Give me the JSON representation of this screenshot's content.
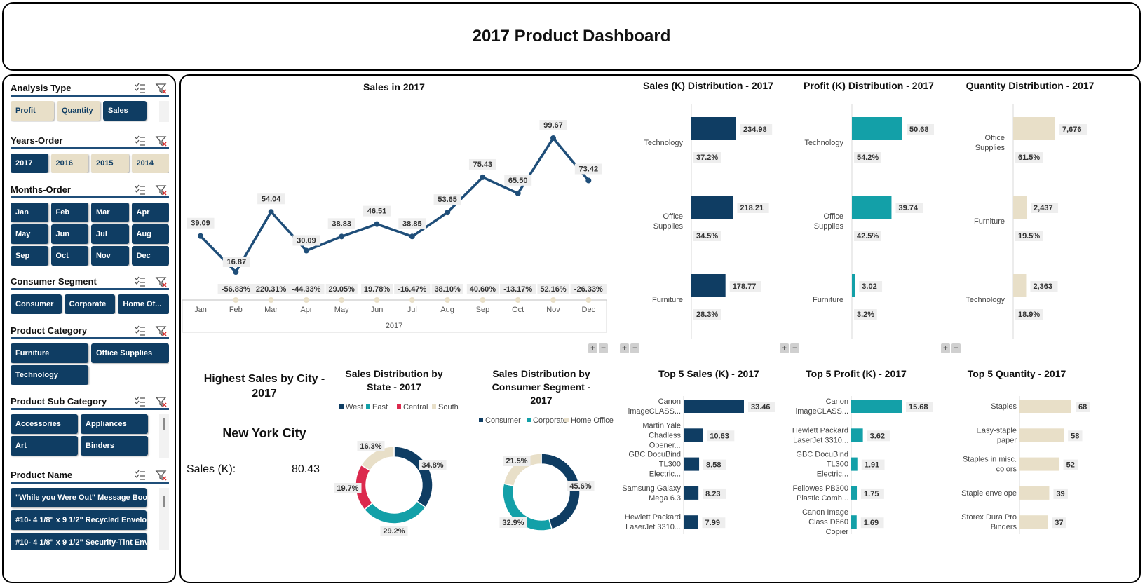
{
  "dashboard": {
    "title": "2017 Product Dashboard"
  },
  "colors": {
    "navy": "#0f3d63",
    "teal": "#13a0a8",
    "beige": "#e8dfc8",
    "crimson": "#dc2a4e",
    "line": "#1f4e79"
  },
  "slicers": {
    "analysis_type": {
      "title": "Analysis Type",
      "items": [
        {
          "label": "Profit",
          "selected": false
        },
        {
          "label": "Quantity",
          "selected": false
        },
        {
          "label": "Sales",
          "selected": true
        }
      ]
    },
    "years": {
      "title": "Years-Order",
      "items": [
        {
          "label": "2017",
          "selected": true
        },
        {
          "label": "2016",
          "selected": false
        },
        {
          "label": "2015",
          "selected": false
        },
        {
          "label": "2014",
          "selected": false
        }
      ]
    },
    "months": {
      "title": "Months-Order",
      "items": [
        {
          "label": "Jan"
        },
        {
          "label": "Feb"
        },
        {
          "label": "Mar"
        },
        {
          "label": "Apr"
        },
        {
          "label": "May"
        },
        {
          "label": "Jun"
        },
        {
          "label": "Jul"
        },
        {
          "label": "Aug"
        },
        {
          "label": "Sep"
        },
        {
          "label": "Oct"
        },
        {
          "label": "Nov"
        },
        {
          "label": "Dec"
        }
      ]
    },
    "segment": {
      "title": "Consumer Segment",
      "items": [
        {
          "label": "Consumer"
        },
        {
          "label": "Corporate"
        },
        {
          "label": "Home Of..."
        }
      ]
    },
    "category": {
      "title": "Product Category",
      "items": [
        {
          "label": "Furniture"
        },
        {
          "label": "Office Supplies"
        },
        {
          "label": "Technology"
        }
      ]
    },
    "sub_category": {
      "title": "Product Sub Category",
      "items": [
        {
          "label": "Accessories"
        },
        {
          "label": "Appliances"
        },
        {
          "label": "Art"
        },
        {
          "label": "Binders"
        }
      ]
    },
    "product_name": {
      "title": "Product Name",
      "items": [
        {
          "label": "\"While you Were Out\" Message Boo..."
        },
        {
          "label": "#10- 4 1/8\" x 9 1/2\" Recycled Envelo..."
        },
        {
          "label": "#10- 4 1/8\" x 9 1/2\" Security-Tint Env..."
        }
      ]
    }
  },
  "city": {
    "title": "Highest Sales  by City - 2017",
    "name": "New York City",
    "metric_label": "Sales (K):",
    "metric_value": "80.43"
  },
  "chart_data": [
    {
      "id": "sales_line",
      "type": "line",
      "title": "Sales in 2017",
      "x": [
        "Jan",
        "Feb",
        "Mar",
        "Apr",
        "May",
        "Jun",
        "Jul",
        "Aug",
        "Sep",
        "Oct",
        "Nov",
        "Dec"
      ],
      "values": [
        39.09,
        16.87,
        54.04,
        30.09,
        38.83,
        46.51,
        38.85,
        53.65,
        75.43,
        65.5,
        99.67,
        73.42
      ],
      "value_labels": [
        "39.09",
        "16.87",
        "54.04",
        "30.09",
        "38.83",
        "46.51",
        "38.85",
        "53.65",
        "75.43",
        "65.50",
        "99.67",
        "73.42"
      ],
      "change_labels": [
        "",
        "-56.83%",
        "220.31%",
        "-44.33%",
        "29.05%",
        "19.78%",
        "-16.47%",
        "38.10%",
        "40.60%",
        "-13.17%",
        "52.16%",
        "-26.33%"
      ],
      "xgroup": "2017"
    },
    {
      "id": "sales_dist",
      "type": "bar",
      "title": "Sales (K) Distribution - 2017",
      "color": "#0f3d63",
      "categories": [
        "Technology",
        "Office Supplies",
        "Furniture"
      ],
      "values": [
        234.98,
        218.21,
        178.77
      ],
      "value_labels": [
        "234.98",
        "218.21",
        "178.77"
      ],
      "pct_labels": [
        "37.2%",
        "34.5%",
        "28.3%"
      ]
    },
    {
      "id": "profit_dist",
      "type": "bar",
      "title": "Profit (K) Distribution - 2017",
      "color": "#13a0a8",
      "categories": [
        "Technology",
        "Office Supplies",
        "Furniture"
      ],
      "values": [
        50.68,
        39.74,
        3.02
      ],
      "value_labels": [
        "50.68",
        "39.74",
        "3.02"
      ],
      "pct_labels": [
        "54.2%",
        "42.5%",
        "3.2%"
      ]
    },
    {
      "id": "qty_dist",
      "type": "bar",
      "title": "Quantity Distribution - 2017",
      "color": "#e8dfc8",
      "categories": [
        "Office Supplies",
        "Furniture",
        "Technology"
      ],
      "values": [
        7676,
        2437,
        2363
      ],
      "value_labels": [
        "7,676",
        "2,437",
        "2,363"
      ],
      "pct_labels": [
        "61.5%",
        "19.5%",
        "18.9%"
      ]
    },
    {
      "id": "state_donut",
      "type": "pie",
      "title": "Sales Distribution by State - 2017",
      "labels": [
        "West",
        "East",
        "Central",
        "South"
      ],
      "values": [
        34.8,
        29.2,
        19.7,
        16.3
      ],
      "value_labels": [
        "34.8%",
        "29.2%",
        "19.7%",
        "16.3%"
      ],
      "colors": [
        "#0f3d63",
        "#13a0a8",
        "#dc2a4e",
        "#e8dfc8"
      ]
    },
    {
      "id": "segment_donut",
      "type": "pie",
      "title": "Sales Distribution by Consumer Segment - 2017",
      "labels": [
        "Consumer",
        "Corporate",
        "Home Office"
      ],
      "values": [
        45.6,
        32.9,
        21.5
      ],
      "value_labels": [
        "45.6%",
        "32.9%",
        "21.5%"
      ],
      "colors": [
        "#0f3d63",
        "#13a0a8",
        "#e8dfc8"
      ]
    },
    {
      "id": "top_sales",
      "type": "bar",
      "title": "Top 5 Sales (K) - 2017",
      "color": "#0f3d63",
      "categories": [
        "Canon imageCLASS...",
        "Martin Yale Chadless Opener...",
        "GBC DocuBind TL300 Electric...",
        "Samsung Galaxy Mega 6.3",
        "Hewlett Packard LaserJet 3310..."
      ],
      "values": [
        33.46,
        10.63,
        8.58,
        8.23,
        7.99
      ],
      "value_labels": [
        "33.46",
        "10.63",
        "8.58",
        "8.23",
        "7.99"
      ]
    },
    {
      "id": "top_profit",
      "type": "bar",
      "title": "Top 5 Profit (K) - 2017",
      "color": "#13a0a8",
      "categories": [
        "Canon imageCLASS...",
        "Hewlett Packard LaserJet 3310...",
        "GBC DocuBind TL300 Electric...",
        "Fellowes PB300 Plastic Comb...",
        "Canon Image Class D660 Copier"
      ],
      "values": [
        15.68,
        3.62,
        1.91,
        1.75,
        1.69
      ],
      "value_labels": [
        "15.68",
        "3.62",
        "1.91",
        "1.75",
        "1.69"
      ]
    },
    {
      "id": "top_qty",
      "type": "bar",
      "title": "Top 5 Quantity - 2017",
      "color": "#e8dfc8",
      "categories": [
        "Staples",
        "Easy-staple paper",
        "Staples in misc. colors",
        "Staple envelope",
        "Storex Dura Pro Binders"
      ],
      "values": [
        68,
        58,
        52,
        39,
        37
      ],
      "value_labels": [
        "68",
        "58",
        "52",
        "39",
        "37"
      ]
    }
  ]
}
